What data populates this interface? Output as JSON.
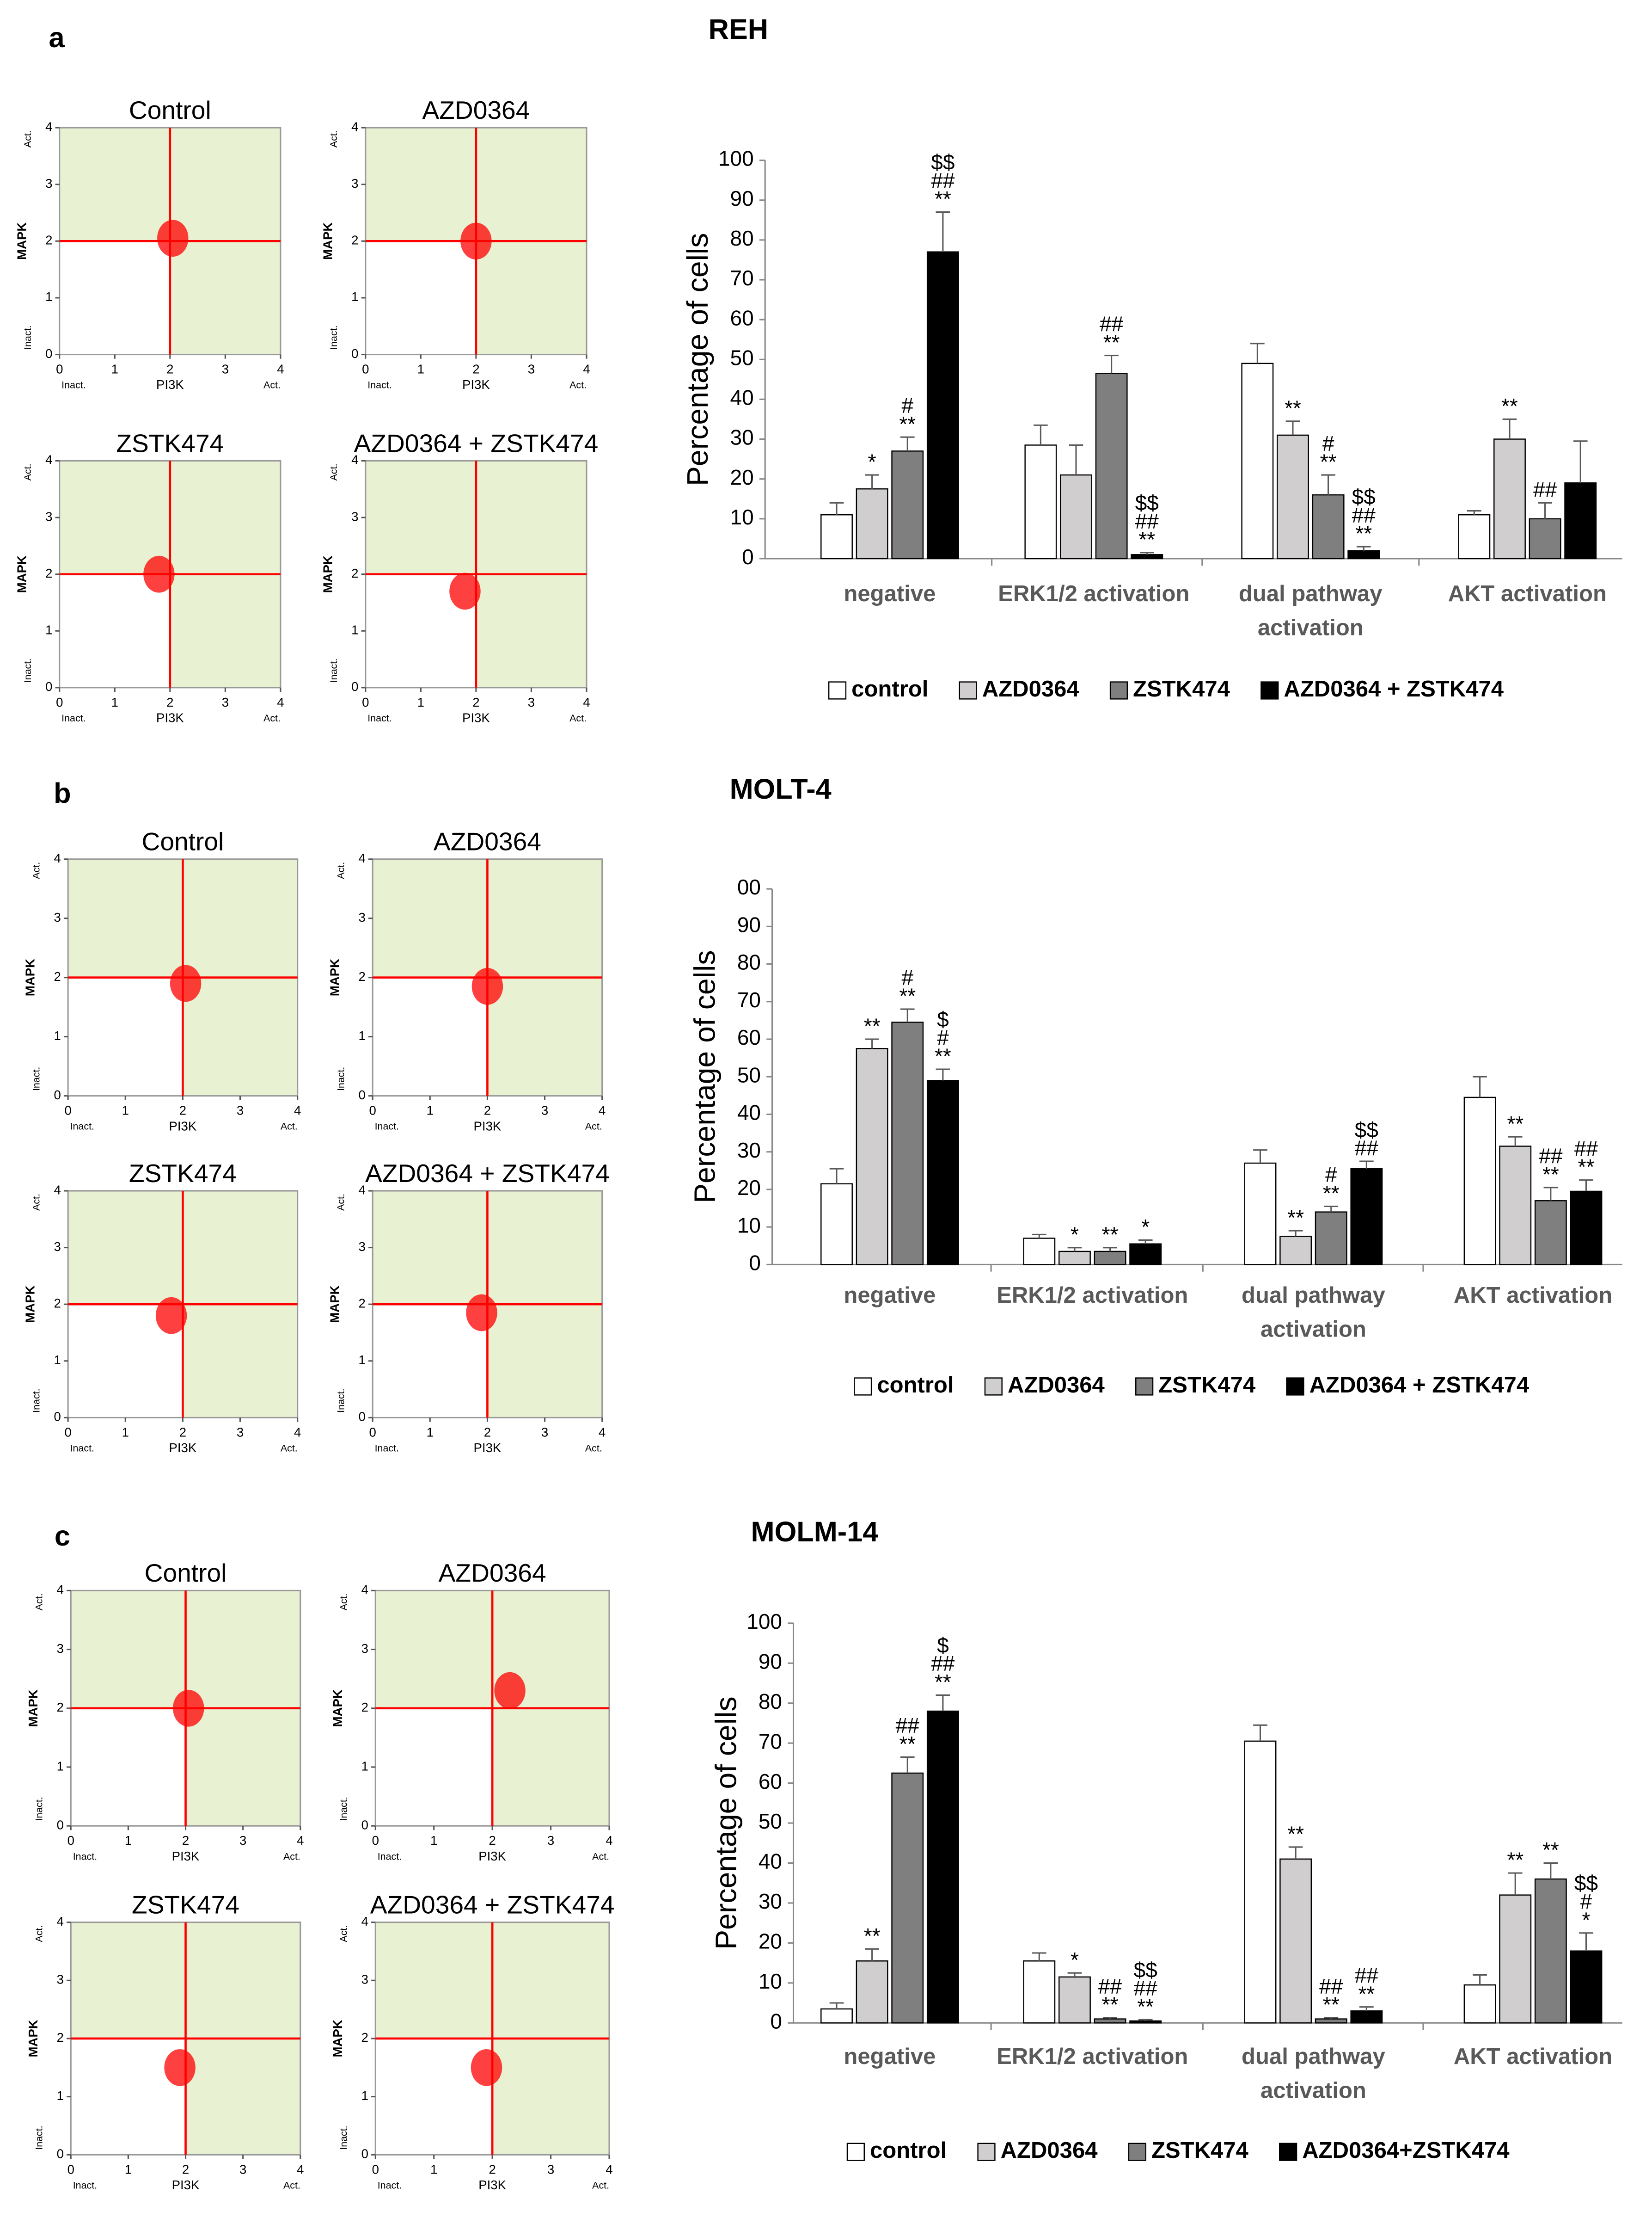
{
  "chart_data": [
    {
      "type": "scatter",
      "title": "Control",
      "xlabel": "PI3K",
      "ylabel": "MAPK",
      "xlim": [
        0,
        4
      ],
      "ylim": [
        0,
        4
      ],
      "xticks": [
        0,
        1,
        2,
        3,
        4
      ],
      "yticks": [
        0,
        1,
        2,
        3,
        4
      ],
      "x_end_labels": [
        "Inact.",
        "Act."
      ],
      "y_end_labels": [
        "Inact.",
        "Act."
      ],
      "gate": [
        2,
        2
      ],
      "color": "#ff0000",
      "x": [
        2.05
      ],
      "values": [
        2.05
      ]
    },
    {
      "type": "scatter",
      "title": "AZD0364",
      "xlabel": "PI3K",
      "ylabel": "MAPK",
      "xlim": [
        0,
        4
      ],
      "ylim": [
        0,
        4
      ],
      "xticks": [
        0,
        1,
        2,
        3,
        4
      ],
      "yticks": [
        0,
        1,
        2,
        3,
        4
      ],
      "x_end_labels": [
        "Inact.",
        "Act."
      ],
      "y_end_labels": [
        "Inact.",
        "Act."
      ],
      "gate": [
        2,
        2
      ],
      "color": "#ff0000",
      "x": [
        2.0
      ],
      "values": [
        2.0
      ]
    },
    {
      "type": "scatter",
      "title": "ZSTK474",
      "xlabel": "PI3K",
      "ylabel": "MAPK",
      "xlim": [
        0,
        4
      ],
      "ylim": [
        0,
        4
      ],
      "xticks": [
        0,
        1,
        2,
        3,
        4
      ],
      "yticks": [
        0,
        1,
        2,
        3,
        4
      ],
      "x_end_labels": [
        "Inact.",
        "Act."
      ],
      "y_end_labels": [
        "Inact.",
        "Act."
      ],
      "gate": [
        2,
        2
      ],
      "color": "#ff0000",
      "x": [
        1.8
      ],
      "values": [
        2.0
      ]
    },
    {
      "type": "scatter",
      "title": "AZD0364 + ZSTK474",
      "xlabel": "PI3K",
      "ylabel": "MAPK",
      "xlim": [
        0,
        4
      ],
      "ylim": [
        0,
        4
      ],
      "xticks": [
        0,
        1,
        2,
        3,
        4
      ],
      "yticks": [
        0,
        1,
        2,
        3,
        4
      ],
      "x_end_labels": [
        "Inact.",
        "Act."
      ],
      "y_end_labels": [
        "Inact.",
        "Act."
      ],
      "gate": [
        2,
        2
      ],
      "color": "#ff0000",
      "x": [
        1.8
      ],
      "values": [
        1.7
      ]
    },
    {
      "type": "bar",
      "panel": "a",
      "title": "REH",
      "ylabel": "Percentage of cells",
      "ylim": [
        0,
        100
      ],
      "yticks": [
        0,
        10,
        20,
        30,
        40,
        50,
        60,
        70,
        80,
        90,
        100
      ],
      "categories": [
        "negative",
        "ERK1/2 activation",
        "dual pathway\nactivation",
        "AKT activation"
      ],
      "series": [
        {
          "name": "control",
          "color": "#ffffff",
          "values": [
            11,
            28.5,
            49,
            11
          ],
          "errors": [
            3,
            5,
            5,
            1
          ],
          "annotations": [
            null,
            null,
            null,
            null
          ]
        },
        {
          "name": "AZD0364",
          "color": "#d0cece",
          "values": [
            17.5,
            21,
            31,
            30
          ],
          "errors": [
            3.5,
            7.5,
            3.5,
            5
          ],
          "annotations": [
            [
              "*"
            ],
            null,
            [
              "**"
            ],
            [
              "**"
            ]
          ]
        },
        {
          "name": "ZSTK474",
          "color": "#7f7f7f",
          "values": [
            27,
            46.5,
            16,
            10
          ],
          "errors": [
            3.5,
            4.5,
            5,
            4
          ],
          "annotations": [
            [
              "#",
              "**"
            ],
            [
              "##",
              "**"
            ],
            [
              "#",
              "**"
            ],
            [
              "##"
            ]
          ]
        },
        {
          "name": "AZD0364 + ZSTK474",
          "color": "#000000",
          "values": [
            77,
            1,
            2,
            19
          ],
          "errors": [
            10,
            0.5,
            1,
            10.5
          ],
          "annotations": [
            [
              "$$",
              "##",
              "**"
            ],
            [
              "$$",
              "##",
              "**"
            ],
            [
              "$$",
              "##",
              "**"
            ],
            null
          ]
        }
      ]
    },
    {
      "type": "scatter",
      "title": "Control",
      "xlabel": "PI3K",
      "ylabel": "MAPK",
      "xlim": [
        0,
        4
      ],
      "ylim": [
        0,
        4
      ],
      "xticks": [
        0,
        1,
        2,
        3,
        4
      ],
      "yticks": [
        0,
        1,
        2,
        3,
        4
      ],
      "x_end_labels": [
        "Inact.",
        "Act."
      ],
      "y_end_labels": [
        "Inact.",
        "Act."
      ],
      "gate": [
        2,
        2
      ],
      "color": "#ff0000",
      "x": [
        2.05
      ],
      "values": [
        1.9
      ]
    },
    {
      "type": "scatter",
      "title": "AZD0364",
      "xlabel": "PI3K",
      "ylabel": "MAPK",
      "xlim": [
        0,
        4
      ],
      "ylim": [
        0,
        4
      ],
      "xticks": [
        0,
        1,
        2,
        3,
        4
      ],
      "yticks": [
        0,
        1,
        2,
        3,
        4
      ],
      "x_end_labels": [
        "Inact.",
        "Act."
      ],
      "y_end_labels": [
        "Inact.",
        "Act."
      ],
      "gate": [
        2,
        2
      ],
      "color": "#ff0000",
      "x": [
        2.0
      ],
      "values": [
        1.85
      ]
    },
    {
      "type": "scatter",
      "title": "ZSTK474",
      "xlabel": "PI3K",
      "ylabel": "MAPK",
      "xlim": [
        0,
        4
      ],
      "ylim": [
        0,
        4
      ],
      "xticks": [
        0,
        1,
        2,
        3,
        4
      ],
      "yticks": [
        0,
        1,
        2,
        3,
        4
      ],
      "x_end_labels": [
        "Inact.",
        "Act."
      ],
      "y_end_labels": [
        "Inact.",
        "Act."
      ],
      "gate": [
        2,
        2
      ],
      "color": "#ff0000",
      "x": [
        1.8
      ],
      "values": [
        1.8
      ]
    },
    {
      "type": "scatter",
      "title": "AZD0364 + ZSTK474",
      "xlabel": "PI3K",
      "ylabel": "MAPK",
      "xlim": [
        0,
        4
      ],
      "ylim": [
        0,
        4
      ],
      "xticks": [
        0,
        1,
        2,
        3,
        4
      ],
      "yticks": [
        0,
        1,
        2,
        3,
        4
      ],
      "x_end_labels": [
        "Inact.",
        "Act."
      ],
      "y_end_labels": [
        "Inact.",
        "Act."
      ],
      "gate": [
        2,
        2
      ],
      "color": "#ff0000",
      "x": [
        1.9
      ],
      "values": [
        1.85
      ]
    },
    {
      "type": "bar",
      "panel": "b",
      "title": "MOLT-4",
      "ylabel": "Percentage of cells",
      "ylim": [
        0,
        100
      ],
      "yticks": [
        0,
        10,
        20,
        30,
        40,
        50,
        60,
        70,
        80,
        90,
        {
          "value": 100,
          "label": "00"
        }
      ],
      "categories": [
        "negative",
        "ERK1/2 activation",
        "dual pathway\nactivation",
        "AKT activation"
      ],
      "series": [
        {
          "name": "control",
          "color": "#ffffff",
          "values": [
            21.5,
            7,
            27,
            44.5
          ],
          "errors": [
            4,
            1,
            3.5,
            5.5
          ],
          "annotations": [
            null,
            null,
            null,
            null
          ]
        },
        {
          "name": "AZD0364",
          "color": "#d0cece",
          "values": [
            57.5,
            3.5,
            7.5,
            31.5
          ],
          "errors": [
            2.5,
            1,
            1.5,
            2.5
          ],
          "annotations": [
            [
              "**"
            ],
            [
              "*"
            ],
            [
              "**"
            ],
            [
              "**"
            ]
          ]
        },
        {
          "name": "ZSTK474",
          "color": "#7f7f7f",
          "values": [
            64.5,
            3.5,
            14,
            17
          ],
          "errors": [
            3.5,
            1,
            1.5,
            3.5
          ],
          "annotations": [
            [
              "#",
              "**"
            ],
            [
              "**"
            ],
            [
              "#",
              "**"
            ],
            [
              "##",
              "**"
            ]
          ]
        },
        {
          "name": "AZD0364 + ZSTK474",
          "color": "#000000",
          "values": [
            49,
            5.5,
            25.5,
            19.5
          ],
          "errors": [
            3,
            1,
            2,
            3
          ],
          "annotations": [
            [
              "$",
              "#",
              "**"
            ],
            [
              "*"
            ],
            [
              "$$",
              "##"
            ],
            [
              "##",
              "**"
            ]
          ]
        }
      ]
    },
    {
      "type": "scatter",
      "title": "Control",
      "xlabel": "PI3K",
      "ylabel": "MAPK",
      "xlim": [
        0,
        4
      ],
      "ylim": [
        0,
        4
      ],
      "xticks": [
        0,
        1,
        2,
        3,
        4
      ],
      "yticks": [
        0,
        1,
        2,
        3,
        4
      ],
      "x_end_labels": [
        "Inact.",
        "Act."
      ],
      "y_end_labels": [
        "Inact.",
        "Act."
      ],
      "gate": [
        2,
        2
      ],
      "color": "#ff0000",
      "x": [
        2.05
      ],
      "values": [
        2.0
      ]
    },
    {
      "type": "scatter",
      "title": "AZD0364",
      "xlabel": "PI3K",
      "ylabel": "MAPK",
      "xlim": [
        0,
        4
      ],
      "ylim": [
        0,
        4
      ],
      "xticks": [
        0,
        1,
        2,
        3,
        4
      ],
      "yticks": [
        0,
        1,
        2,
        3,
        4
      ],
      "x_end_labels": [
        "Inact.",
        "Act."
      ],
      "y_end_labels": [
        "Inact.",
        "Act."
      ],
      "gate": [
        2,
        2
      ],
      "color": "#ff0000",
      "x": [
        2.3
      ],
      "values": [
        2.3
      ]
    },
    {
      "type": "scatter",
      "title": "ZSTK474",
      "xlabel": "PI3K",
      "ylabel": "MAPK",
      "xlim": [
        0,
        4
      ],
      "ylim": [
        0,
        4
      ],
      "xticks": [
        0,
        1,
        2,
        3,
        4
      ],
      "yticks": [
        0,
        1,
        2,
        3,
        4
      ],
      "x_end_labels": [
        "Inact.",
        "Act."
      ],
      "y_end_labels": [
        "Inact.",
        "Act."
      ],
      "gate": [
        2,
        2
      ],
      "color": "#ff0000",
      "x": [
        1.9
      ],
      "values": [
        1.5
      ]
    },
    {
      "type": "scatter",
      "title": "AZD0364 + ZSTK474",
      "xlabel": "PI3K",
      "ylabel": "MAPK",
      "xlim": [
        0,
        4
      ],
      "ylim": [
        0,
        4
      ],
      "xticks": [
        0,
        1,
        2,
        3,
        4
      ],
      "yticks": [
        0,
        1,
        2,
        3,
        4
      ],
      "x_end_labels": [
        "Inact.",
        "Act."
      ],
      "y_end_labels": [
        "Inact.",
        "Act."
      ],
      "gate": [
        2,
        2
      ],
      "color": "#ff0000",
      "x": [
        1.9
      ],
      "values": [
        1.5
      ]
    },
    {
      "type": "bar",
      "panel": "c",
      "title": "MOLM-14",
      "ylabel": "Percentage of cells",
      "ylim": [
        0,
        100
      ],
      "yticks": [
        0,
        10,
        20,
        30,
        40,
        50,
        60,
        70,
        80,
        90,
        100
      ],
      "categories": [
        "negative",
        "ERK1/2 activation",
        "dual pathway\nactivation",
        "AKT activation"
      ],
      "series": [
        {
          "name": "control",
          "color": "#ffffff",
          "values": [
            3.5,
            15.5,
            70.5,
            9.5
          ],
          "errors": [
            1.5,
            2,
            4,
            2.5
          ],
          "annotations": [
            null,
            null,
            null,
            null
          ]
        },
        {
          "name": "AZD0364",
          "color": "#d0cece",
          "values": [
            15.5,
            11.5,
            41,
            32
          ],
          "errors": [
            3,
            1,
            3,
            5.5
          ],
          "annotations": [
            [
              "**"
            ],
            [
              "*"
            ],
            [
              "**"
            ],
            [
              "**"
            ]
          ]
        },
        {
          "name": "ZSTK474",
          "color": "#7f7f7f",
          "values": [
            62.5,
            1,
            1,
            36
          ],
          "errors": [
            4,
            0.3,
            0.3,
            4
          ],
          "annotations": [
            [
              "##",
              "**"
            ],
            [
              "##",
              "**"
            ],
            [
              "##",
              "**"
            ],
            [
              "**"
            ]
          ]
        },
        {
          "name": "AZD0364+ZSTK474",
          "color": "#000000",
          "values": [
            78,
            0.5,
            3,
            18
          ],
          "errors": [
            4,
            0.3,
            1,
            4.5
          ],
          "annotations": [
            [
              "$",
              "##",
              "**"
            ],
            [
              "$$",
              "##",
              "**"
            ],
            [
              "##",
              "**"
            ],
            [
              "$$",
              "#",
              "*"
            ]
          ]
        }
      ]
    }
  ]
}
